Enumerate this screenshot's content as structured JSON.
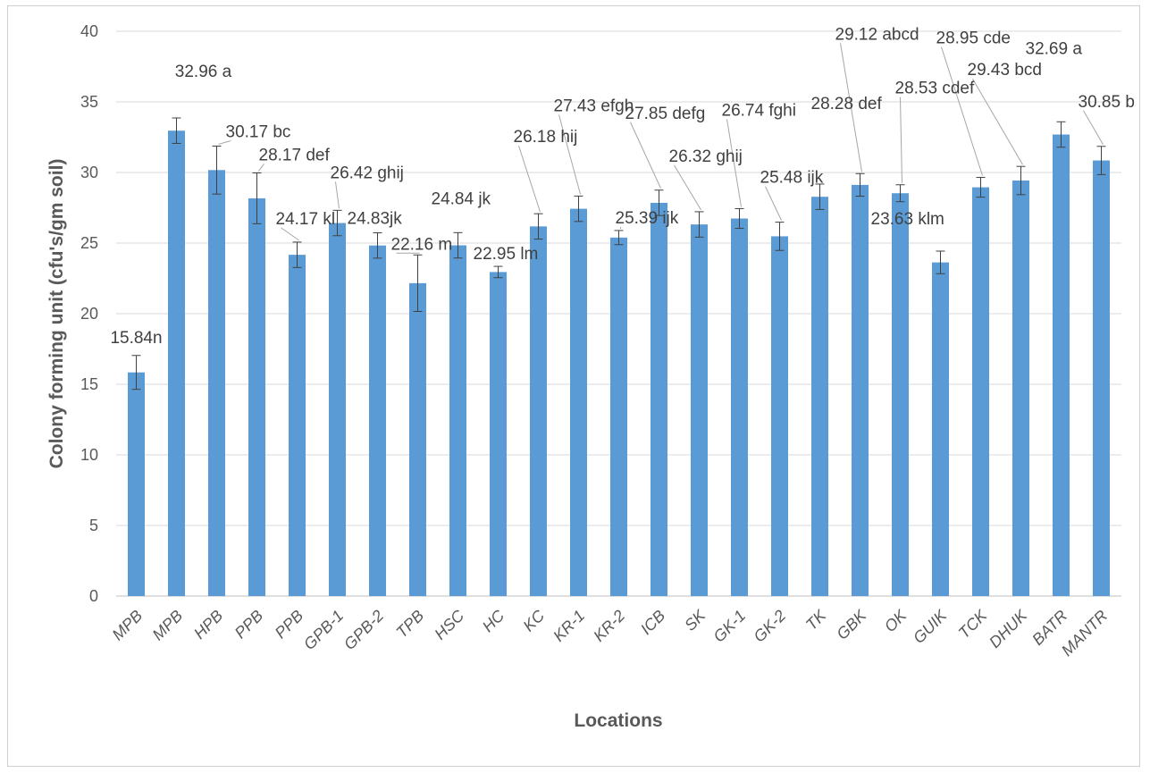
{
  "chart_data": {
    "type": "bar",
    "title": "",
    "xlabel": "Locations",
    "ylabel": "Colony forming unit (cfu's/gm soil)",
    "ylim": [
      0,
      40
    ],
    "yticks": [
      0,
      5,
      10,
      15,
      20,
      25,
      30,
      35,
      40
    ],
    "grid": "horizontal",
    "legend": "none",
    "bar_color": "#5b9bd5",
    "categories": [
      "MPB",
      "MPB",
      "HPB",
      "PPB",
      "PPB",
      "GPB-1",
      "GPB-2",
      "TPB",
      "HSC",
      "HC",
      "KC",
      "KR-1",
      "KR-2",
      "ICB",
      "SK",
      "GK-1",
      "GK-2",
      "TK",
      "GBK",
      "OK",
      "GUIK",
      "TCK",
      "DHUK",
      "BATR",
      "MANTR"
    ],
    "values": [
      15.84,
      32.96,
      30.17,
      28.17,
      24.17,
      26.42,
      24.83,
      22.16,
      24.84,
      22.95,
      26.18,
      27.43,
      25.39,
      27.85,
      26.32,
      26.74,
      25.48,
      28.28,
      29.12,
      28.53,
      23.63,
      28.95,
      29.43,
      32.69,
      30.85
    ],
    "error": [
      1.2,
      0.9,
      1.7,
      1.8,
      0.9,
      0.9,
      0.9,
      2.0,
      0.9,
      0.4,
      0.9,
      0.9,
      0.5,
      0.9,
      0.9,
      0.7,
      1.0,
      0.9,
      0.8,
      0.6,
      0.8,
      0.7,
      1.0,
      0.9,
      1.0
    ],
    "data_labels": [
      "15.84n",
      "32.96 a",
      "30.17 bc",
      "28.17 def",
      "24.17 kl",
      "26.42 ghij",
      "24.83jk",
      "22.16 m",
      "24.84 jk",
      "22.95 lm",
      "26.18 hij",
      "27.43 efgh",
      "25.39 ijk",
      "27.85 defg",
      "26.32 ghij",
      "26.74 fghi",
      "25.48 ijk",
      "28.28 def",
      "29.12 abcd",
      "28.53 cdef",
      "23.63 klm",
      "28.95 cde",
      "29.43 bcd",
      "32.69 a",
      "30.85 b"
    ]
  }
}
